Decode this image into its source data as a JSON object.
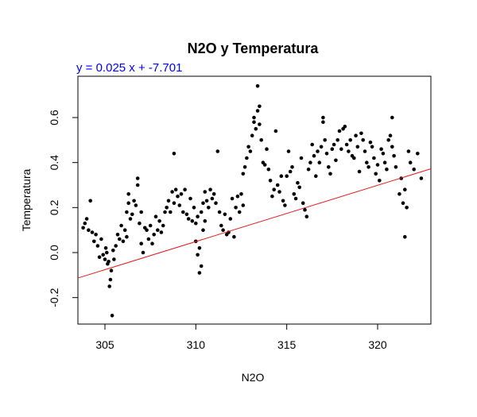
{
  "chart_data": {
    "type": "scatter",
    "title": "N2O y Temperatura",
    "annotation": "y = 0.025 x + -7.701",
    "xlabel": "N2O",
    "ylabel": "Temperatura",
    "xlim": [
      303,
      323
    ],
    "ylim": [
      -0.31,
      0.77
    ],
    "xticks": [
      305,
      310,
      315,
      320
    ],
    "yticks": [
      -0.2,
      0.0,
      0.2,
      0.4,
      0.6
    ],
    "ytick_labels": [
      "-0.2",
      "0.0",
      "0.2",
      "0.4",
      "0.6"
    ],
    "regression": {
      "slope": 0.025,
      "intercept": -7.701
    },
    "colors": {
      "points": "#000000",
      "regression_line": "#e41a1c",
      "annotation": "#0000ff"
    },
    "points": [
      [
        303.8,
        0.11
      ],
      [
        303.9,
        0.13
      ],
      [
        304.0,
        0.15
      ],
      [
        304.1,
        0.1
      ],
      [
        304.2,
        0.23
      ],
      [
        304.3,
        0.09
      ],
      [
        304.4,
        0.05
      ],
      [
        304.5,
        0.08
      ],
      [
        304.6,
        0.03
      ],
      [
        304.7,
        -0.02
      ],
      [
        304.8,
        0.06
      ],
      [
        304.9,
        -0.01
      ],
      [
        305.0,
        -0.03
      ],
      [
        305.05,
        0.02
      ],
      [
        305.1,
        0.0
      ],
      [
        305.15,
        -0.05
      ],
      [
        305.2,
        -0.04
      ],
      [
        305.25,
        -0.15
      ],
      [
        305.3,
        -0.12
      ],
      [
        305.35,
        -0.08
      ],
      [
        305.4,
        -0.28
      ],
      [
        305.45,
        0.01
      ],
      [
        305.5,
        -0.03
      ],
      [
        305.6,
        0.03
      ],
      [
        305.7,
        0.08
      ],
      [
        305.8,
        0.06
      ],
      [
        305.9,
        0.12
      ],
      [
        306.0,
        0.05
      ],
      [
        306.1,
        0.1
      ],
      [
        306.2,
        0.07
      ],
      [
        306.2,
        0.18
      ],
      [
        306.3,
        0.22
      ],
      [
        306.3,
        0.26
      ],
      [
        306.4,
        0.15
      ],
      [
        306.5,
        0.17
      ],
      [
        306.6,
        0.23
      ],
      [
        306.7,
        0.21
      ],
      [
        306.8,
        0.3
      ],
      [
        306.8,
        0.33
      ],
      [
        306.9,
        0.13
      ],
      [
        307.0,
        0.04
      ],
      [
        307.0,
        0.18
      ],
      [
        307.1,
        0.0
      ],
      [
        307.2,
        0.11
      ],
      [
        307.3,
        0.1
      ],
      [
        307.4,
        0.06
      ],
      [
        307.5,
        0.12
      ],
      [
        307.6,
        0.04
      ],
      [
        307.7,
        0.08
      ],
      [
        307.8,
        0.16
      ],
      [
        307.9,
        0.1
      ],
      [
        308.0,
        0.14
      ],
      [
        308.1,
        0.09
      ],
      [
        308.2,
        0.12
      ],
      [
        308.3,
        0.18
      ],
      [
        308.4,
        0.2
      ],
      [
        308.5,
        0.23
      ],
      [
        308.6,
        0.18
      ],
      [
        308.7,
        0.27
      ],
      [
        308.8,
        0.22
      ],
      [
        308.8,
        0.44
      ],
      [
        308.9,
        0.28
      ],
      [
        309.0,
        0.25
      ],
      [
        309.1,
        0.21
      ],
      [
        309.2,
        0.26
      ],
      [
        309.3,
        0.18
      ],
      [
        309.4,
        0.28
      ],
      [
        309.5,
        0.17
      ],
      [
        309.6,
        0.15
      ],
      [
        309.7,
        0.24
      ],
      [
        309.8,
        0.14
      ],
      [
        309.9,
        0.2
      ],
      [
        310.0,
        0.05
      ],
      [
        310.0,
        0.13
      ],
      [
        310.1,
        0.16
      ],
      [
        310.1,
        -0.01
      ],
      [
        310.2,
        0.02
      ],
      [
        310.2,
        -0.09
      ],
      [
        310.3,
        -0.06
      ],
      [
        310.3,
        0.18
      ],
      [
        310.4,
        0.22
      ],
      [
        310.4,
        0.1
      ],
      [
        310.5,
        0.14
      ],
      [
        310.5,
        0.27
      ],
      [
        310.6,
        0.23
      ],
      [
        310.7,
        0.2
      ],
      [
        310.8,
        0.28
      ],
      [
        310.9,
        0.24
      ],
      [
        311.0,
        0.26
      ],
      [
        311.1,
        0.22
      ],
      [
        311.2,
        0.45
      ],
      [
        311.3,
        0.18
      ],
      [
        311.4,
        0.12
      ],
      [
        311.5,
        0.1
      ],
      [
        311.6,
        0.17
      ],
      [
        311.7,
        0.08
      ],
      [
        311.8,
        0.09
      ],
      [
        311.9,
        0.15
      ],
      [
        312.0,
        0.24
      ],
      [
        312.1,
        0.07
      ],
      [
        312.2,
        0.2
      ],
      [
        312.3,
        0.25
      ],
      [
        312.4,
        0.18
      ],
      [
        312.5,
        0.26
      ],
      [
        312.6,
        0.21
      ],
      [
        312.6,
        0.35
      ],
      [
        312.7,
        0.38
      ],
      [
        312.8,
        0.42
      ],
      [
        312.9,
        0.47
      ],
      [
        313.0,
        0.45
      ],
      [
        313.1,
        0.52
      ],
      [
        313.2,
        0.58
      ],
      [
        313.2,
        0.6
      ],
      [
        313.3,
        0.55
      ],
      [
        313.4,
        0.63
      ],
      [
        313.4,
        0.74
      ],
      [
        313.5,
        0.65
      ],
      [
        313.5,
        0.57
      ],
      [
        313.6,
        0.5
      ],
      [
        313.7,
        0.4
      ],
      [
        313.8,
        0.39
      ],
      [
        313.9,
        0.46
      ],
      [
        314.0,
        0.37
      ],
      [
        314.1,
        0.32
      ],
      [
        314.2,
        0.25
      ],
      [
        314.3,
        0.28
      ],
      [
        314.4,
        0.54
      ],
      [
        314.5,
        0.3
      ],
      [
        314.6,
        0.27
      ],
      [
        314.7,
        0.34
      ],
      [
        314.8,
        0.23
      ],
      [
        314.9,
        0.21
      ],
      [
        315.0,
        0.34
      ],
      [
        315.1,
        0.45
      ],
      [
        315.2,
        0.36
      ],
      [
        315.3,
        0.38
      ],
      [
        315.4,
        0.26
      ],
      [
        315.5,
        0.24
      ],
      [
        315.6,
        0.31
      ],
      [
        315.7,
        0.29
      ],
      [
        315.8,
        0.42
      ],
      [
        315.9,
        0.22
      ],
      [
        316.0,
        0.19
      ],
      [
        316.1,
        0.16
      ],
      [
        316.2,
        0.37
      ],
      [
        316.3,
        0.4
      ],
      [
        316.4,
        0.48
      ],
      [
        316.5,
        0.43
      ],
      [
        316.6,
        0.34
      ],
      [
        316.7,
        0.45
      ],
      [
        316.8,
        0.4
      ],
      [
        316.9,
        0.47
      ],
      [
        317.0,
        0.58
      ],
      [
        317.0,
        0.6
      ],
      [
        317.1,
        0.5
      ],
      [
        317.2,
        0.44
      ],
      [
        317.3,
        0.38
      ],
      [
        317.4,
        0.35
      ],
      [
        317.5,
        0.46
      ],
      [
        317.6,
        0.48
      ],
      [
        317.7,
        0.41
      ],
      [
        317.8,
        0.5
      ],
      [
        317.9,
        0.54
      ],
      [
        318.0,
        0.46
      ],
      [
        318.1,
        0.55
      ],
      [
        318.2,
        0.56
      ],
      [
        318.3,
        0.48
      ],
      [
        318.4,
        0.45
      ],
      [
        318.5,
        0.5
      ],
      [
        318.6,
        0.43
      ],
      [
        318.7,
        0.42
      ],
      [
        318.8,
        0.52
      ],
      [
        318.9,
        0.47
      ],
      [
        319.0,
        0.36
      ],
      [
        319.1,
        0.53
      ],
      [
        319.2,
        0.5
      ],
      [
        319.3,
        0.45
      ],
      [
        319.4,
        0.4
      ],
      [
        319.5,
        0.38
      ],
      [
        319.6,
        0.49
      ],
      [
        319.7,
        0.47
      ],
      [
        319.8,
        0.42
      ],
      [
        319.9,
        0.35
      ],
      [
        320.0,
        0.39
      ],
      [
        320.1,
        0.32
      ],
      [
        320.2,
        0.46
      ],
      [
        320.3,
        0.44
      ],
      [
        320.4,
        0.4
      ],
      [
        320.5,
        0.37
      ],
      [
        320.6,
        0.5
      ],
      [
        320.7,
        0.52
      ],
      [
        320.8,
        0.47
      ],
      [
        320.8,
        0.6
      ],
      [
        320.9,
        0.43
      ],
      [
        321.0,
        0.38
      ],
      [
        321.2,
        0.26
      ],
      [
        321.3,
        0.33
      ],
      [
        321.4,
        0.22
      ],
      [
        321.5,
        0.28
      ],
      [
        321.5,
        0.07
      ],
      [
        321.6,
        0.2
      ],
      [
        321.7,
        0.45
      ],
      [
        321.8,
        0.4
      ],
      [
        322.0,
        0.37
      ],
      [
        322.2,
        0.44
      ],
      [
        322.4,
        0.33
      ]
    ]
  }
}
